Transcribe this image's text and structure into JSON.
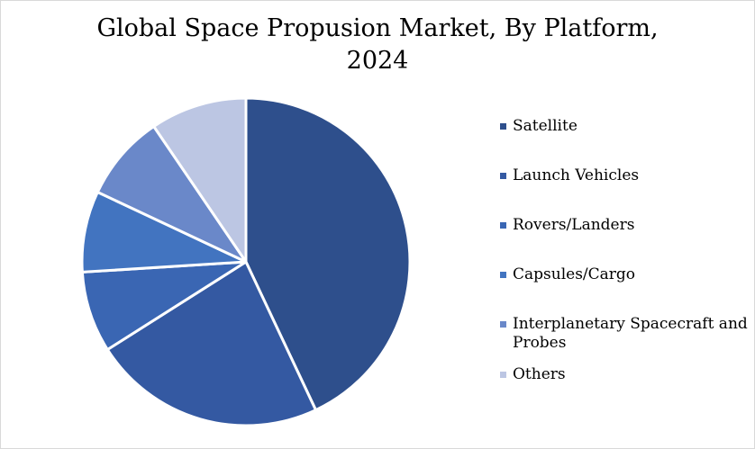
{
  "chart_data": {
    "type": "pie",
    "title_lines": [
      "Global Space Propusion Market, By Platform,",
      "2024"
    ],
    "categories": [
      "Satellite",
      "Launch Vehicles",
      "Rovers/Landers",
      "Capsules/Cargo",
      "Interplanetary Spacecraft and Probes",
      "Others"
    ],
    "values": [
      43,
      23,
      8,
      8,
      8.5,
      9.5
    ],
    "colors": [
      "#2e4f8c",
      "#3459a2",
      "#3a66b3",
      "#4274c0",
      "#6a88c9",
      "#bcc6e3"
    ],
    "legend_position": "right"
  }
}
